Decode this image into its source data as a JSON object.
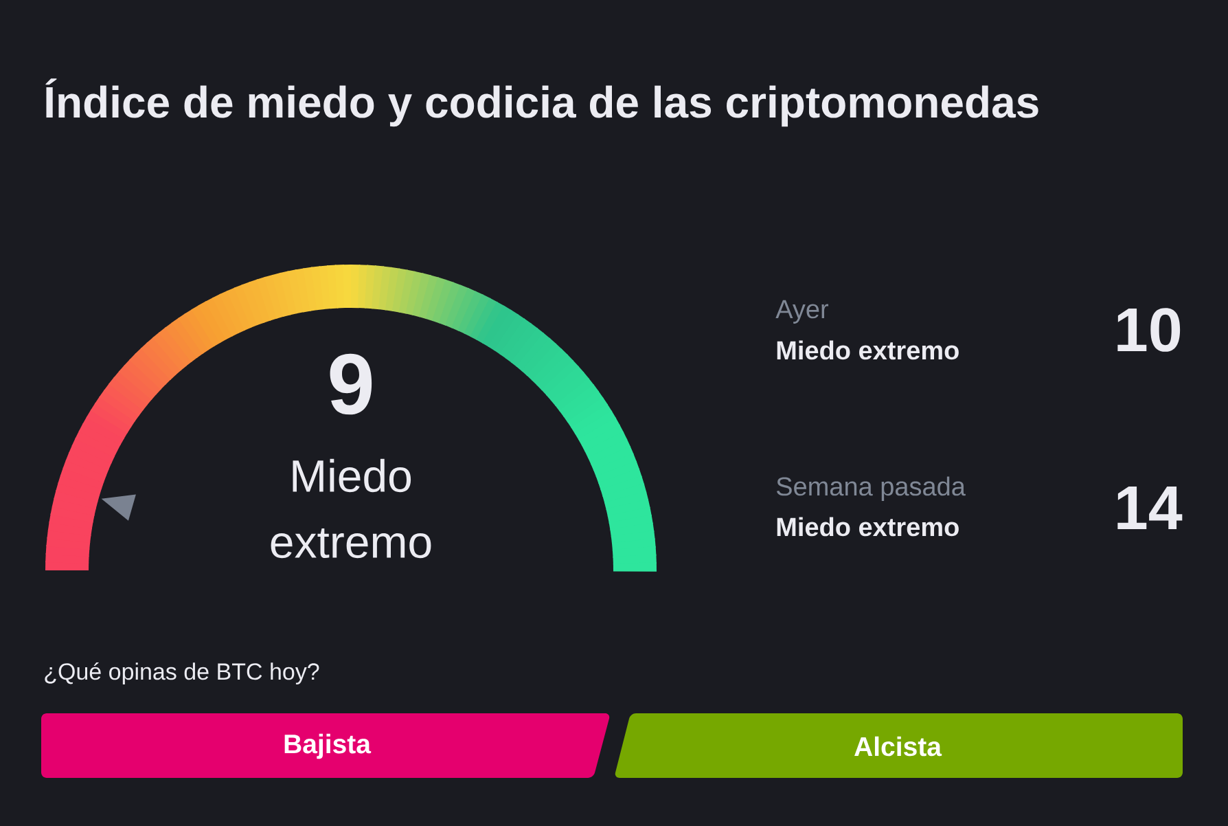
{
  "chart_data": {
    "type": "other",
    "title": "Índice de miedo y codicia de las criptomonedas",
    "categories": [
      null,
      "Ayer",
      "Semana pasada"
    ],
    "values": [
      9,
      10,
      14
    ],
    "data_labels": true,
    "annotations": [
      "Miedo extremo",
      "Miedo extremo",
      "Miedo extremo",
      "¿Qué opinas de BTC hoy?",
      "Bajista",
      "Alcista"
    ]
  }
}
